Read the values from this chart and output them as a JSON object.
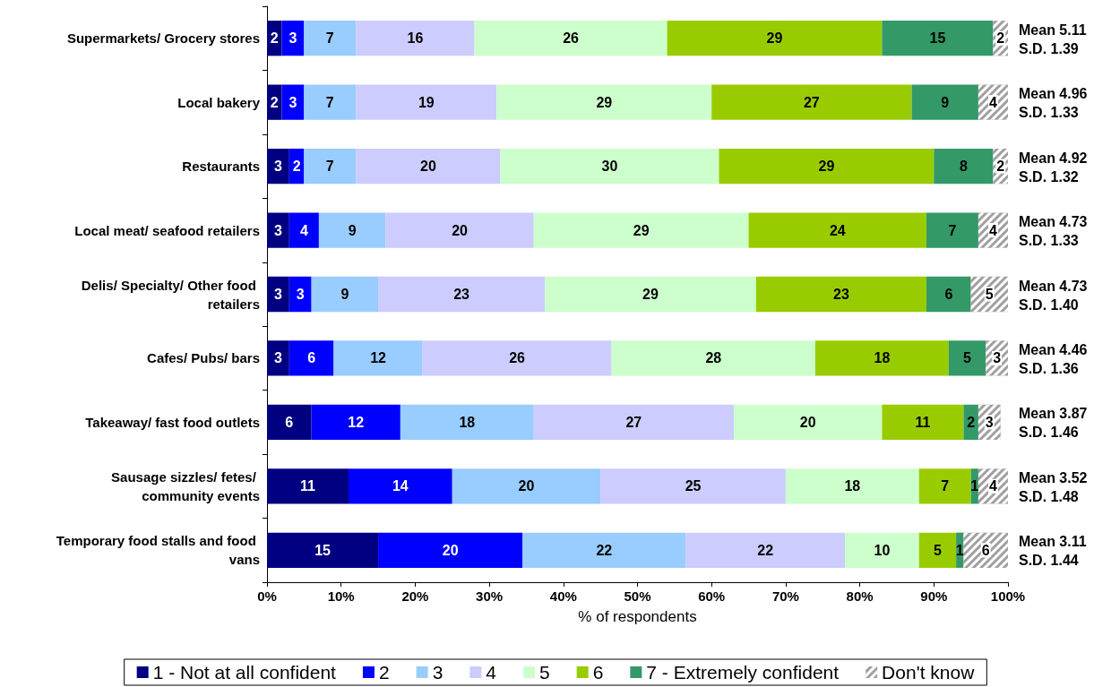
{
  "chart_data": {
    "type": "bar",
    "orientation": "horizontal",
    "stacked": true,
    "xlabel": "% of respondents",
    "categories": [
      "Supermarkets/ Grocery stores",
      "Local bakery",
      "Restaurants",
      "Local meat/ seafood retailers",
      "Delis/ Specialty/ Other food retailers",
      "Cafes/ Pubs/ bars",
      "Takeaway/ fast food outlets",
      "Sausage sizzles/ fetes/ community events",
      "Temporary food stalls and food vans"
    ],
    "series": [
      {
        "name": "1 - Not at all confident",
        "color": "#000080",
        "values": [
          2,
          2,
          3,
          3,
          3,
          3,
          6,
          11,
          15
        ],
        "value_labels": [
          "2",
          "2",
          "3",
          "3",
          "3",
          "3",
          "6",
          "11",
          "15"
        ]
      },
      {
        "name": "2",
        "color": "#0000ff",
        "values": [
          3,
          3,
          2,
          4,
          3,
          6,
          12,
          14,
          19.5
        ],
        "value_labels": [
          "3",
          "3",
          "2",
          "4",
          "3",
          "6",
          "12",
          "14",
          "20"
        ]
      },
      {
        "name": "3",
        "color": "#99ccff",
        "values": [
          7,
          7,
          7,
          9,
          9,
          12,
          18,
          20,
          22
        ],
        "value_labels": [
          "7",
          "7",
          "7",
          "9",
          "9",
          "12",
          "18",
          "20",
          "22"
        ]
      },
      {
        "name": "4",
        "color": "#ccccff",
        "values": [
          16,
          19,
          19.5,
          20,
          22.5,
          25.5,
          27,
          25,
          21.5
        ],
        "value_labels": [
          "16",
          "19",
          "20",
          "20",
          "23",
          "26",
          "27",
          "25",
          "22"
        ]
      },
      {
        "name": "5",
        "color": "#ccffcc",
        "values": [
          26,
          29,
          29.5,
          29,
          28.5,
          27.5,
          20,
          18,
          10
        ],
        "value_labels": [
          "26",
          "29",
          "30",
          "29",
          "29",
          "28",
          "20",
          "18",
          "10"
        ]
      },
      {
        "name": "6",
        "color": "#99cc00",
        "values": [
          29,
          27,
          29,
          24,
          23,
          18,
          11,
          7,
          5
        ],
        "value_labels": [
          "29",
          "27",
          "29",
          "24",
          "23",
          "18",
          "11",
          "7",
          "5"
        ]
      },
      {
        "name": "7 - Extremely confident",
        "color": "#339966",
        "values": [
          15,
          9,
          8,
          7,
          6,
          5,
          2,
          1,
          1
        ],
        "value_labels": [
          "15",
          "9",
          "8",
          "7",
          "6",
          "5",
          "2",
          "1",
          "1"
        ]
      },
      {
        "name": "Don't know",
        "color": "#a0a0a0",
        "values": [
          2,
          4,
          2,
          4,
          5,
          3,
          3,
          4,
          6
        ],
        "value_labels": [
          "2",
          "4",
          "2",
          "4",
          "5",
          "3",
          "3",
          "4",
          "6"
        ]
      }
    ],
    "xlim": [
      0,
      100
    ],
    "xticks": [
      {
        "value": 0,
        "label": "0%"
      },
      {
        "value": 10,
        "label": "10%"
      },
      {
        "value": 20,
        "label": "20%"
      },
      {
        "value": 30,
        "label": "30%"
      },
      {
        "value": 40,
        "label": "40%"
      },
      {
        "value": 50,
        "label": "50%"
      },
      {
        "value": 60,
        "label": "60%"
      },
      {
        "value": 70,
        "label": "70%"
      },
      {
        "value": 80,
        "label": "80%"
      },
      {
        "value": 90,
        "label": "90%"
      },
      {
        "value": 100,
        "label": "100%"
      }
    ],
    "annotations": [
      "Mean 5.11\nS.D. 1.39",
      "Mean 4.96\nS.D. 1.33",
      "Mean 4.92\nS.D. 1.32",
      "Mean 4.73\nS.D. 1.33",
      "Mean 4.73\nS.D. 1.40",
      "Mean 4.46\nS.D. 1.36",
      "Mean 3.87\nS.D. 1.46",
      "Mean 3.52\nS.D. 1.48",
      "Mean 3.11\nS.D. 1.44"
    ],
    "legend": "bottom"
  }
}
